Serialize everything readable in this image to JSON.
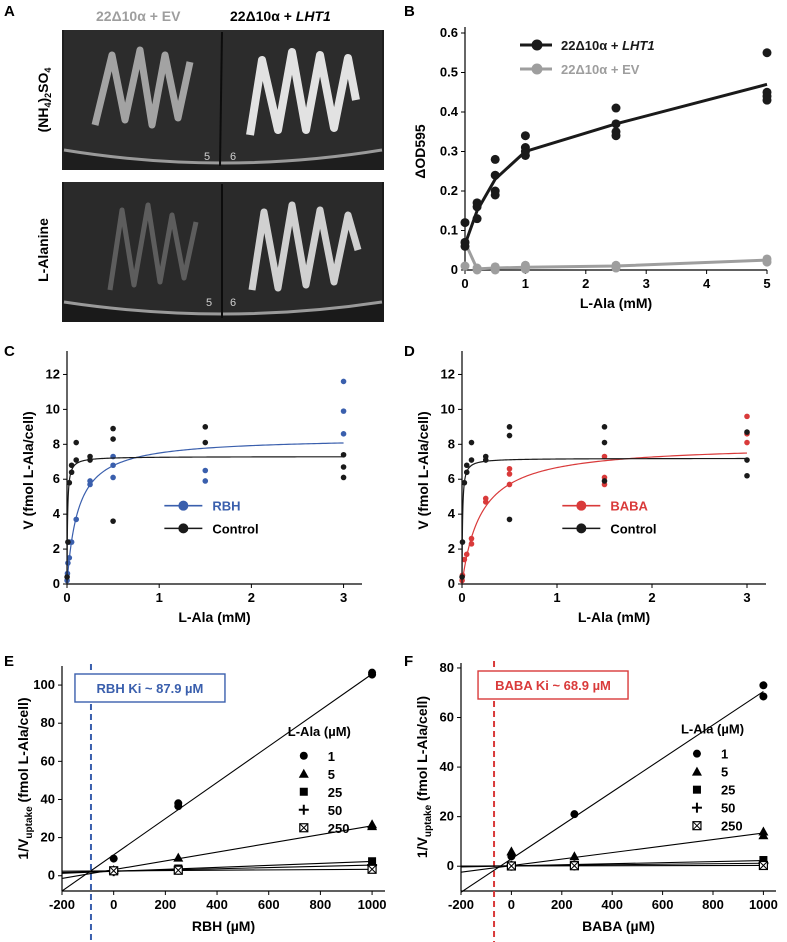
{
  "colors": {
    "black": "#1a1a1a",
    "ev_gray": "#9e9e9e",
    "rbh_blue": "#3a5fad",
    "baba_red": "#d93a3a",
    "plate_bg": "#1e1e1e",
    "streak": "#d8d8d8"
  },
  "panel_a": {
    "letter": "A",
    "heading_ev": "22Δ10α + EV",
    "heading_lht1_prefix": "22Δ10α + ",
    "heading_lht1_gene": "LHT1",
    "row_top_label": "(NH4)2SO4",
    "row_bottom_label": "L-Alanine",
    "plate_marks": [
      "5",
      "6"
    ]
  },
  "chart_data": [
    {
      "panel": "B",
      "type": "scatter",
      "xlabel": "L-Ala (mM)",
      "ylabel": "ΔOD595",
      "xlim": [
        0,
        5
      ],
      "ylim": [
        0,
        0.6
      ],
      "xticks": [
        0,
        1,
        2,
        3,
        4,
        5
      ],
      "yticks": [
        0,
        0.1,
        0.2,
        0.3,
        0.4,
        0.5,
        0.6
      ],
      "legend_position": "top-left",
      "series": [
        {
          "name": "22Δ10α + LHT1",
          "color": "#1a1a1a",
          "points": [
            [
              0,
              0.12
            ],
            [
              0,
              0.07
            ],
            [
              0,
              0.06
            ],
            [
              0.2,
              0.17
            ],
            [
              0.2,
              0.16
            ],
            [
              0.2,
              0.13
            ],
            [
              0.5,
              0.28
            ],
            [
              0.5,
              0.24
            ],
            [
              0.5,
              0.2
            ],
            [
              0.5,
              0.19
            ],
            [
              1,
              0.34
            ],
            [
              1,
              0.31
            ],
            [
              1,
              0.3
            ],
            [
              1,
              0.29
            ],
            [
              2.5,
              0.41
            ],
            [
              2.5,
              0.37
            ],
            [
              2.5,
              0.35
            ],
            [
              2.5,
              0.34
            ],
            [
              5,
              0.55
            ],
            [
              5,
              0.45
            ],
            [
              5,
              0.44
            ],
            [
              5,
              0.43
            ]
          ],
          "line": [
            [
              0,
              0.065
            ],
            [
              0.2,
              0.15
            ],
            [
              0.5,
              0.23
            ],
            [
              1,
              0.3
            ],
            [
              2.5,
              0.37
            ],
            [
              5,
              0.47
            ]
          ]
        },
        {
          "name": "22Δ10α + EV",
          "color": "#9e9e9e",
          "points": [
            [
              0,
              0.07
            ],
            [
              0,
              0.01
            ],
            [
              0.2,
              0.005
            ],
            [
              0.2,
              0.0
            ],
            [
              0.5,
              0.008
            ],
            [
              0.5,
              0.0
            ],
            [
              1,
              0.012
            ],
            [
              1,
              0.002
            ],
            [
              2.5,
              0.012
            ],
            [
              2.5,
              0.005
            ],
            [
              5,
              0.028
            ],
            [
              5,
              0.02
            ]
          ],
          "line": [
            [
              0,
              0.07
            ],
            [
              0.2,
              0.003
            ],
            [
              0.5,
              0.005
            ],
            [
              1,
              0.007
            ],
            [
              2.5,
              0.01
            ],
            [
              5,
              0.025
            ]
          ]
        }
      ]
    },
    {
      "panel": "C",
      "type": "scatter",
      "xlabel": "L-Ala (mM)",
      "ylabel": "V (fmol L-Ala/cell)",
      "xlim": [
        0,
        3.2
      ],
      "ylim": [
        0,
        13
      ],
      "xticks": [
        0,
        1,
        2,
        3
      ],
      "yticks": [
        0,
        2,
        4,
        6,
        8,
        10,
        12
      ],
      "legend_position": "center-right",
      "series": [
        {
          "name": "RBH",
          "color": "#3a5fad",
          "points": [
            [
              0.001,
              0.2
            ],
            [
              0.005,
              0.6
            ],
            [
              0.01,
              1.2
            ],
            [
              0.025,
              1.5
            ],
            [
              0.025,
              2.4
            ],
            [
              0.05,
              2.4
            ],
            [
              0.1,
              3.7
            ],
            [
              0.25,
              5.7
            ],
            [
              0.25,
              5.9
            ],
            [
              0.5,
              6.1
            ],
            [
              0.5,
              6.8
            ],
            [
              0.5,
              7.3
            ],
            [
              1.5,
              5.9
            ],
            [
              1.5,
              6.5
            ],
            [
              3,
              8.6
            ],
            [
              3,
              9.9
            ],
            [
              3,
              11.6
            ]
          ],
          "fit": {
            "vmax": 8.4,
            "km": 0.12
          }
        },
        {
          "name": "Control",
          "color": "#1a1a1a",
          "points": [
            [
              0.001,
              0.4
            ],
            [
              0.01,
              2.4
            ],
            [
              0.025,
              5.8
            ],
            [
              0.05,
              6.4
            ],
            [
              0.05,
              6.8
            ],
            [
              0.1,
              7.1
            ],
            [
              0.1,
              8.1
            ],
            [
              0.25,
              7.1
            ],
            [
              0.25,
              7.3
            ],
            [
              0.5,
              3.6
            ],
            [
              0.5,
              8.9
            ],
            [
              0.5,
              8.3
            ],
            [
              1.5,
              8.1
            ],
            [
              1.5,
              9.0
            ],
            [
              3,
              6.1
            ],
            [
              3,
              6.7
            ],
            [
              3,
              7.4
            ]
          ],
          "fit": {
            "vmax": 7.3,
            "km": 0.006
          }
        }
      ]
    },
    {
      "panel": "D",
      "type": "scatter",
      "xlabel": "L-Ala (mM)",
      "ylabel": "V (fmol L-Ala/cell)",
      "xlim": [
        0,
        3.2
      ],
      "ylim": [
        0,
        13
      ],
      "xticks": [
        0,
        1,
        2,
        3
      ],
      "yticks": [
        0,
        2,
        4,
        6,
        8,
        10,
        12
      ],
      "legend_position": "center-right",
      "series": [
        {
          "name": "BABA",
          "color": "#d93a3a",
          "points": [
            [
              0.001,
              0.2
            ],
            [
              0.005,
              0.5
            ],
            [
              0.025,
              1.4
            ],
            [
              0.05,
              1.7
            ],
            [
              0.1,
              2.3
            ],
            [
              0.1,
              2.6
            ],
            [
              0.25,
              4.7
            ],
            [
              0.25,
              4.9
            ],
            [
              0.5,
              5.7
            ],
            [
              0.5,
              6.3
            ],
            [
              0.5,
              6.6
            ],
            [
              1.5,
              5.7
            ],
            [
              1.5,
              6.1
            ],
            [
              1.5,
              7.3
            ],
            [
              3,
              8.1
            ],
            [
              3,
              8.6
            ],
            [
              3,
              9.6
            ]
          ],
          "fit": {
            "vmax": 8.0,
            "km": 0.2
          }
        },
        {
          "name": "Control",
          "color": "#1a1a1a",
          "points": [
            [
              0.001,
              0.4
            ],
            [
              0.005,
              2.4
            ],
            [
              0.025,
              5.8
            ],
            [
              0.05,
              6.4
            ],
            [
              0.05,
              6.8
            ],
            [
              0.1,
              7.1
            ],
            [
              0.1,
              8.1
            ],
            [
              0.25,
              7.1
            ],
            [
              0.25,
              7.3
            ],
            [
              0.5,
              3.7
            ],
            [
              0.5,
              8.5
            ],
            [
              0.5,
              9.0
            ],
            [
              1.5,
              5.9
            ],
            [
              1.5,
              8.1
            ],
            [
              1.5,
              9.0
            ],
            [
              3,
              6.2
            ],
            [
              3,
              7.1
            ],
            [
              3,
              8.7
            ]
          ],
          "fit": {
            "vmax": 7.2,
            "km": 0.006
          }
        }
      ]
    },
    {
      "panel": "E",
      "type": "line",
      "xlabel": "RBH (µM)",
      "ylabel_main": "1/V",
      "ylabel_sub": "uptake",
      "ylabel_rest": " (fmol L-Ala/cell)",
      "xlim": [
        -200,
        1050
      ],
      "ylim": [
        -8,
        110
      ],
      "xticks": [
        -200,
        0,
        200,
        400,
        600,
        800,
        1000
      ],
      "yticks": [
        0,
        20,
        40,
        60,
        80,
        100
      ],
      "ki_label": "RBH Ki ~ 87.9 µM",
      "ki_value": -87.9,
      "ki_color": "#3a5fad",
      "legend_title": "L-Ala (µM)",
      "series": [
        {
          "name": "1",
          "marker": "circle",
          "points": [
            [
              0,
              9.0
            ],
            [
              250,
              36.5
            ],
            [
              250,
              38.0
            ],
            [
              1000,
              105.5
            ],
            [
              1000,
              106.5
            ]
          ],
          "line": [
            [
              -200,
              -8
            ],
            [
              1000,
              105.8
            ]
          ]
        },
        {
          "name": "5",
          "marker": "triangle",
          "points": [
            [
              0,
              3.0
            ],
            [
              250,
              9.5
            ],
            [
              1000,
              26.0
            ],
            [
              1000,
              27.0
            ]
          ],
          "line": [
            [
              -200,
              -1.4
            ],
            [
              1000,
              26.2
            ]
          ]
        },
        {
          "name": "25",
          "marker": "square",
          "points": [
            [
              0,
              2.6
            ],
            [
              250,
              3.8
            ],
            [
              1000,
              7.6
            ]
          ],
          "line": [
            [
              -200,
              1.3
            ],
            [
              1000,
              7.5
            ]
          ]
        },
        {
          "name": "50",
          "marker": "plus",
          "points": [
            [
              0,
              2.4
            ],
            [
              250,
              3.2
            ],
            [
              1000,
              5.6
            ]
          ],
          "line": [
            [
              -200,
              1.7
            ],
            [
              1000,
              5.6
            ]
          ]
        },
        {
          "name": "250",
          "marker": "boxx",
          "points": [
            [
              0,
              2.6
            ],
            [
              250,
              2.9
            ],
            [
              1000,
              3.4
            ]
          ],
          "line": [
            [
              -200,
              2.4
            ],
            [
              1000,
              3.4
            ]
          ]
        }
      ]
    },
    {
      "panel": "F",
      "type": "line",
      "xlabel": "BABA (µM)",
      "ylabel_main": "1/V",
      "ylabel_sub": "uptake",
      "ylabel_rest": " (fmol L-Ala/cell)",
      "xlim": [
        -200,
        1050
      ],
      "ylim": [
        -10,
        82
      ],
      "xticks": [
        -200,
        0,
        200,
        400,
        600,
        800,
        1000
      ],
      "yticks": [
        0,
        20,
        40,
        60,
        80
      ],
      "ki_label": "BABA Ki ~ 68.9 µM",
      "ki_value": -68.9,
      "ki_color": "#d93a3a",
      "legend_title": "L-Ala (µM)",
      "series": [
        {
          "name": "1",
          "marker": "circle",
          "points": [
            [
              0,
              4.0
            ],
            [
              250,
              21.0
            ],
            [
              1000,
              68.5
            ],
            [
              1000,
              73.0
            ]
          ],
          "line": [
            [
              -200,
              -10.5
            ],
            [
              1000,
              70.5
            ]
          ]
        },
        {
          "name": "5",
          "marker": "triangle",
          "points": [
            [
              0,
              6.0
            ],
            [
              250,
              4.0
            ],
            [
              1000,
              12.5
            ],
            [
              1000,
              14.0
            ]
          ],
          "line": [
            [
              -200,
              -2.4
            ],
            [
              1000,
              13.4
            ]
          ]
        },
        {
          "name": "25",
          "marker": "square",
          "points": [
            [
              0,
              0.3
            ],
            [
              250,
              0.5
            ],
            [
              1000,
              2.5
            ]
          ],
          "line": [
            [
              -200,
              -0.3
            ],
            [
              1000,
              2.3
            ]
          ]
        },
        {
          "name": "50",
          "marker": "plus",
          "points": [
            [
              0,
              0.2
            ],
            [
              250,
              0.3
            ],
            [
              1000,
              1.2
            ]
          ],
          "line": [
            [
              -200,
              0.0
            ],
            [
              1000,
              1.2
            ]
          ]
        },
        {
          "name": "250",
          "marker": "boxx",
          "points": [
            [
              0,
              0.1
            ],
            [
              250,
              0.2
            ],
            [
              1000,
              0.3
            ]
          ],
          "line": [
            [
              -200,
              0.05
            ],
            [
              1000,
              0.3
            ]
          ]
        }
      ]
    }
  ]
}
